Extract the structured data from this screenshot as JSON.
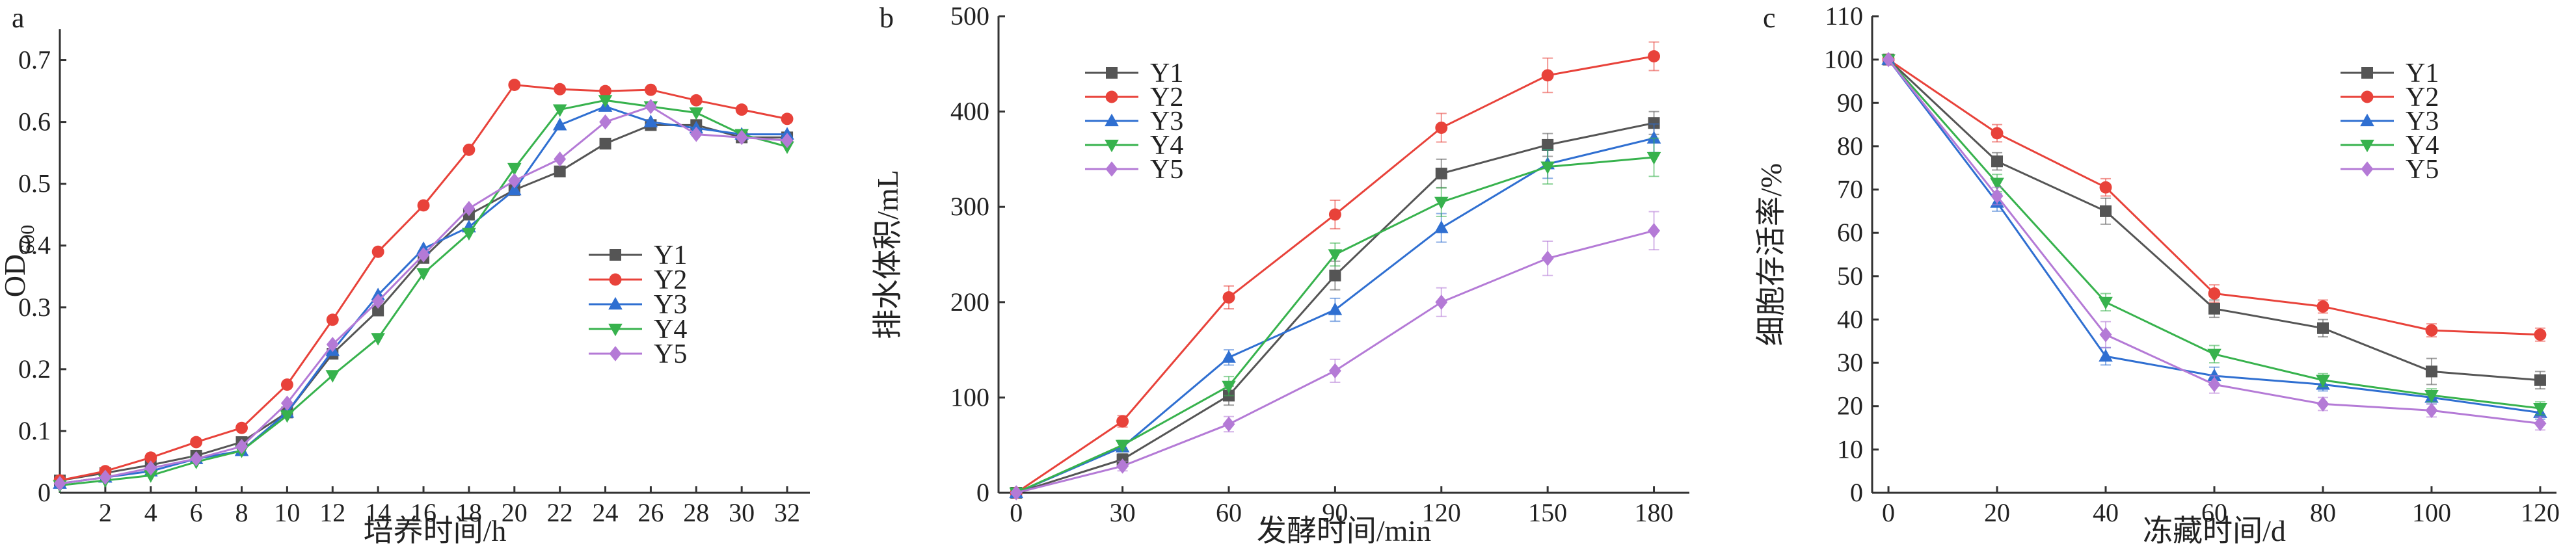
{
  "chart_data": [
    {
      "type": "line",
      "panel_label": "a",
      "xlabel": "培养时间/h",
      "ylabel": "OD",
      "ylabel_sub": "600",
      "x_ticks": [
        2,
        4,
        6,
        8,
        10,
        12,
        14,
        16,
        18,
        20,
        22,
        24,
        26,
        28,
        30,
        32
      ],
      "y_ticks": [
        0,
        0.1,
        0.2,
        0.3,
        0.4,
        0.5,
        0.6,
        0.7
      ],
      "x_tick_labels": [
        "2",
        "4",
        "6",
        "8",
        "10",
        "12",
        "14",
        "16",
        "18",
        "20",
        "22",
        "24",
        "26",
        "28",
        "30",
        "32"
      ],
      "y_tick_labels": [
        "0",
        "0.1",
        "0.2",
        "0.3",
        "0.4",
        "0.5",
        "0.6",
        "0.7"
      ],
      "xlim": [
        0,
        33
      ],
      "ylim": [
        0,
        0.75
      ],
      "legend_position": "right",
      "x": [
        0,
        2,
        4,
        6,
        8,
        10,
        12,
        14,
        16,
        18,
        20,
        22,
        24,
        26,
        28,
        30,
        32
      ],
      "series": [
        {
          "name": "Y1",
          "values": [
            0.02,
            0.032,
            0.045,
            0.06,
            0.082,
            0.13,
            0.225,
            0.295,
            0.38,
            0.45,
            0.49,
            0.52,
            0.565,
            0.595,
            0.595,
            0.575,
            0.575
          ]
        },
        {
          "name": "Y2",
          "values": [
            0.02,
            0.035,
            0.057,
            0.082,
            0.105,
            0.175,
            0.28,
            0.39,
            0.465,
            0.555,
            0.66,
            0.653,
            0.65,
            0.652,
            0.635,
            0.62,
            0.605
          ]
        },
        {
          "name": "Y3",
          "values": [
            0.015,
            0.025,
            0.035,
            0.055,
            0.068,
            0.13,
            0.23,
            0.32,
            0.395,
            0.43,
            0.49,
            0.595,
            0.625,
            0.6,
            0.59,
            0.58,
            0.58
          ]
        },
        {
          "name": "Y4",
          "values": [
            0.012,
            0.02,
            0.028,
            0.05,
            0.068,
            0.125,
            0.19,
            0.25,
            0.355,
            0.42,
            0.525,
            0.62,
            0.635,
            0.625,
            0.615,
            0.58,
            0.56
          ]
        },
        {
          "name": "Y5",
          "values": [
            0.015,
            0.025,
            0.04,
            0.055,
            0.075,
            0.145,
            0.24,
            0.31,
            0.385,
            0.46,
            0.505,
            0.54,
            0.6,
            0.625,
            0.58,
            0.575,
            0.57
          ]
        }
      ],
      "colors": [
        "#555555",
        "#e8423a",
        "#2f6fd1",
        "#37b24d",
        "#b47ad6"
      ],
      "markers": [
        "square",
        "circle",
        "triangle-up",
        "triangle-down",
        "diamond"
      ]
    },
    {
      "type": "line",
      "panel_label": "b",
      "xlabel": "发酵时间/min",
      "ylabel": "排水体积/mL",
      "x_ticks": [
        0,
        30,
        60,
        90,
        120,
        150,
        180
      ],
      "y_ticks": [
        0,
        100,
        200,
        300,
        400,
        500
      ],
      "x_tick_labels": [
        "0",
        "30",
        "60",
        "90",
        "120",
        "150",
        "180"
      ],
      "y_tick_labels": [
        "0",
        "100",
        "200",
        "300",
        "400",
        "500"
      ],
      "xlim": [
        -5,
        190
      ],
      "ylim": [
        0,
        500
      ],
      "legend_position": "top-left",
      "error_bars": true,
      "x": [
        0,
        30,
        60,
        90,
        120,
        150,
        180
      ],
      "series": [
        {
          "name": "Y1",
          "values": [
            0,
            35,
            102,
            228,
            335,
            365,
            388
          ],
          "errors": [
            0,
            6,
            10,
            15,
            15,
            12,
            12
          ]
        },
        {
          "name": "Y2",
          "values": [
            0,
            75,
            205,
            292,
            383,
            438,
            458
          ],
          "errors": [
            0,
            6,
            12,
            15,
            15,
            18,
            15
          ]
        },
        {
          "name": "Y3",
          "values": [
            0,
            48,
            142,
            192,
            278,
            345,
            372
          ],
          "errors": [
            0,
            5,
            8,
            12,
            15,
            15,
            15
          ]
        },
        {
          "name": "Y4",
          "values": [
            0,
            50,
            112,
            250,
            305,
            342,
            352
          ],
          "errors": [
            0,
            5,
            10,
            12,
            15,
            18,
            20
          ]
        },
        {
          "name": "Y5",
          "values": [
            0,
            28,
            72,
            128,
            200,
            246,
            275
          ],
          "errors": [
            0,
            5,
            8,
            12,
            15,
            18,
            20
          ]
        }
      ],
      "colors": [
        "#555555",
        "#e8423a",
        "#2f6fd1",
        "#37b24d",
        "#b47ad6"
      ],
      "markers": [
        "square",
        "circle",
        "triangle-up",
        "triangle-down",
        "diamond"
      ]
    },
    {
      "type": "line",
      "panel_label": "c",
      "xlabel": "冻藏时间/d",
      "ylabel": "细胞存活率/%",
      "x_ticks": [
        0,
        20,
        40,
        60,
        80,
        100,
        120
      ],
      "y_ticks": [
        0,
        10,
        20,
        30,
        40,
        50,
        60,
        70,
        80,
        90,
        100,
        110
      ],
      "x_tick_labels": [
        "0",
        "20",
        "40",
        "60",
        "80",
        "100",
        "120"
      ],
      "y_tick_labels": [
        "0",
        "10",
        "20",
        "30",
        "40",
        "50",
        "60",
        "70",
        "80",
        "90",
        "100",
        "110"
      ],
      "xlim": [
        -3,
        123
      ],
      "ylim": [
        0,
        110
      ],
      "legend_position": "top-right",
      "error_bars": true,
      "x": [
        0,
        20,
        40,
        60,
        80,
        100,
        120
      ],
      "series": [
        {
          "name": "Y1",
          "values": [
            100,
            76.5,
            65,
            42.5,
            38,
            28,
            26
          ],
          "errors": [
            0,
            2,
            3,
            2,
            2,
            3,
            2
          ]
        },
        {
          "name": "Y2",
          "values": [
            100,
            83,
            70.5,
            46,
            43,
            37.5,
            36.5
          ],
          "errors": [
            0,
            2,
            2,
            2,
            1.5,
            1.5,
            1.5
          ]
        },
        {
          "name": "Y3",
          "values": [
            100,
            67,
            31.5,
            27,
            25,
            22,
            18.5
          ],
          "errors": [
            0,
            2,
            2,
            2,
            1.5,
            1.5,
            1.5
          ]
        },
        {
          "name": "Y4",
          "values": [
            100,
            71.5,
            44,
            32,
            26,
            22.5,
            19.5
          ],
          "errors": [
            0,
            2,
            2,
            2,
            1.5,
            1.5,
            1.5
          ]
        },
        {
          "name": "Y5",
          "values": [
            100,
            68.5,
            36.5,
            25,
            20.5,
            19,
            16
          ],
          "errors": [
            0,
            2,
            3,
            2,
            1.5,
            1.5,
            1.5
          ]
        }
      ],
      "colors": [
        "#555555",
        "#e8423a",
        "#2f6fd1",
        "#37b24d",
        "#b47ad6"
      ],
      "markers": [
        "square",
        "circle",
        "triangle-up",
        "triangle-down",
        "diamond"
      ]
    }
  ]
}
